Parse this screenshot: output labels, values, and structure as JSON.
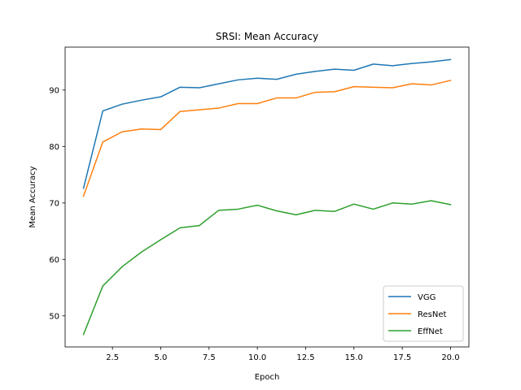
{
  "chart_data": {
    "type": "line",
    "title": "SRSI: Mean Accuracy",
    "xlabel": "Epoch",
    "ylabel": "Mean Accuracy",
    "xlim": [
      0.05,
      20.95
    ],
    "ylim": [
      44.5,
      97.6
    ],
    "xticks": [
      2.5,
      5.0,
      7.5,
      10.0,
      12.5,
      15.0,
      17.5,
      20.0
    ],
    "xtick_labels": [
      "2.5",
      "5.0",
      "7.5",
      "10.0",
      "12.5",
      "15.0",
      "17.5",
      "20.0"
    ],
    "yticks": [
      50,
      60,
      70,
      80,
      90
    ],
    "ytick_labels": [
      "50",
      "60",
      "70",
      "80",
      "90"
    ],
    "grid": false,
    "legend_position": "lower-right",
    "x": [
      1,
      2,
      3,
      4,
      5,
      6,
      7,
      8,
      9,
      10,
      11,
      12,
      13,
      14,
      15,
      16,
      17,
      18,
      19,
      20
    ],
    "series": [
      {
        "name": "VGG",
        "color": "#1f77b4",
        "values": [
          72.6,
          86.3,
          87.5,
          88.2,
          88.8,
          90.5,
          90.4,
          91.1,
          91.8,
          92.1,
          91.9,
          92.8,
          93.3,
          93.7,
          93.5,
          94.6,
          94.3,
          94.7,
          95.0,
          95.4
        ]
      },
      {
        "name": "ResNet",
        "color": "#ff7f0e",
        "values": [
          71.2,
          80.8,
          82.6,
          83.1,
          83.0,
          86.2,
          86.5,
          86.8,
          87.6,
          87.6,
          88.6,
          88.6,
          89.6,
          89.7,
          90.6,
          90.5,
          90.4,
          91.1,
          90.9,
          91.7
        ]
      },
      {
        "name": "EffNet",
        "color": "#2ca02c",
        "values": [
          46.7,
          55.3,
          58.7,
          61.3,
          63.5,
          65.6,
          66.0,
          68.7,
          68.9,
          69.6,
          68.6,
          67.9,
          68.7,
          68.5,
          69.8,
          68.9,
          70.0,
          69.8,
          70.4,
          69.7
        ]
      }
    ]
  }
}
